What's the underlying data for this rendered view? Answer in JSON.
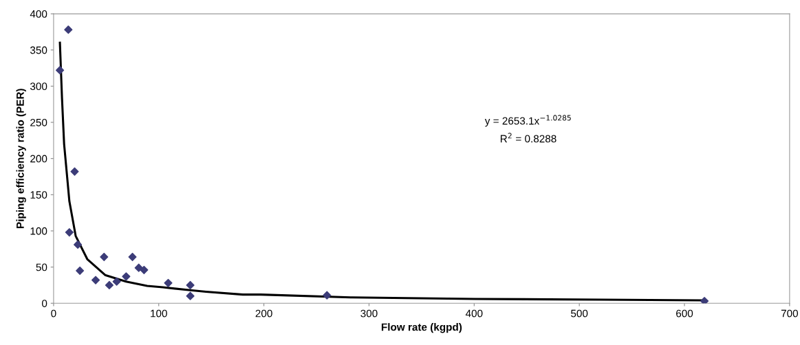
{
  "chart_data": {
    "type": "scatter",
    "xlabel": "Flow rate (kgpd)",
    "ylabel": "Piping efficiency ratio (PER)",
    "xlim": [
      0,
      700
    ],
    "xticks": [
      0,
      100,
      200,
      300,
      400,
      500,
      600,
      700
    ],
    "ylim": [
      0,
      400
    ],
    "yticks": [
      0,
      50,
      100,
      150,
      200,
      250,
      300,
      350,
      400
    ],
    "grid": false,
    "legend": false,
    "marker": "diamond",
    "series": [
      {
        "color": "#3c3c78",
        "x": [
          6,
          14,
          20,
          15,
          23,
          25,
          40,
          48,
          53,
          60,
          69,
          75,
          81,
          86,
          109,
          130,
          130,
          260,
          619
        ],
        "values": [
          322,
          378,
          182,
          98,
          81,
          45,
          32,
          64,
          25,
          30,
          37,
          64,
          49,
          46,
          28,
          25,
          10,
          11,
          3
        ]
      },
      {
        "type": "line",
        "color": "#000000",
        "marker": "none",
        "line_style": "solid",
        "x": [
          6,
          8,
          10,
          15,
          21,
          32,
          49,
          69,
          89,
          104,
          130,
          145,
          180,
          197,
          284,
          401,
          519,
          619
        ],
        "values": [
          360,
          283,
          220,
          141,
          93,
          61,
          39,
          30,
          24,
          22,
          18,
          16,
          12,
          12,
          8,
          6,
          5,
          4
        ]
      }
    ],
    "annotations": [
      "y = 2653.1x$^{−1.0285}$",
      "R$^{2}$ = 0.8288"
    ]
  }
}
